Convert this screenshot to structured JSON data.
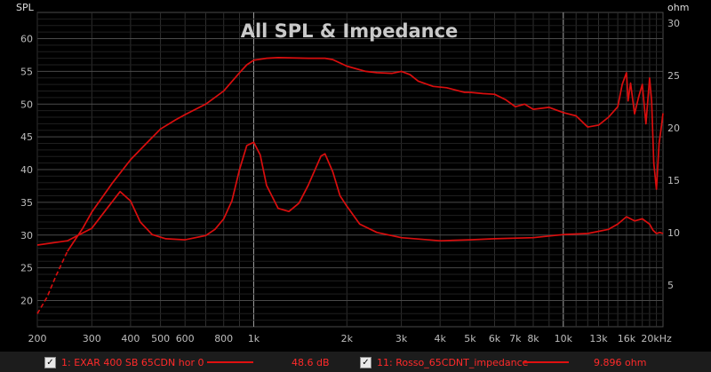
{
  "window": {
    "title": "All SPL & Impedance"
  },
  "colors": {
    "background": "#000000",
    "grid": "#3a3a3a",
    "curve": "#d90e0e",
    "legend_bg": "#1c1c1c",
    "legend_text": "#ff2a2a"
  },
  "legend": [
    {
      "checked": true,
      "name": "1: EXAR 400 SB 65CDN hor 0",
      "value": "48.6 dB"
    },
    {
      "checked": true,
      "name": "11: Rosso_65CDNT_impedance",
      "value": "9.896 ohm"
    }
  ],
  "chart_data": {
    "type": "line",
    "title": "All SPL & Impedance",
    "x_scale": "log",
    "xlim": [
      200,
      21000
    ],
    "xticks": [
      {
        "v": 200,
        "label": "200"
      },
      {
        "v": 300,
        "label": "300"
      },
      {
        "v": 400,
        "label": "400"
      },
      {
        "v": 500,
        "label": "500"
      },
      {
        "v": 600,
        "label": "600"
      },
      {
        "v": 800,
        "label": "800"
      },
      {
        "v": 1000,
        "label": "1k"
      },
      {
        "v": 2000,
        "label": "2k"
      },
      {
        "v": 3000,
        "label": "3k"
      },
      {
        "v": 4000,
        "label": "4k"
      },
      {
        "v": 5000,
        "label": "5k"
      },
      {
        "v": 6000,
        "label": "6k"
      },
      {
        "v": 7000,
        "label": "7k"
      },
      {
        "v": 8000,
        "label": "8k"
      },
      {
        "v": 10000,
        "label": "10k"
      },
      {
        "v": 13000,
        "label": "13k"
      },
      {
        "v": 16000,
        "label": "16k"
      },
      {
        "v": 20000,
        "label": "20kHz"
      }
    ],
    "y_left": {
      "unit_label": "SPL",
      "lim": [
        16,
        64
      ],
      "ticks": [
        20,
        25,
        30,
        35,
        40,
        45,
        50,
        55,
        60
      ]
    },
    "y_right": {
      "unit_label": "ohm",
      "lim": [
        1,
        31
      ],
      "ticks": [
        5,
        10,
        15,
        20,
        25,
        30
      ]
    },
    "grid": true,
    "series": [
      {
        "name": "1: EXAR 400 SB 65CDN hor 0",
        "axis": "left",
        "extrapolated_points": [
          [
            200,
            18
          ],
          [
            215,
            20.5
          ],
          [
            230,
            23.8
          ],
          [
            250,
            27.5
          ]
        ],
        "points": [
          [
            250,
            27.5
          ],
          [
            280,
            31
          ],
          [
            300,
            33.5
          ],
          [
            350,
            38
          ],
          [
            400,
            41.5
          ],
          [
            450,
            44
          ],
          [
            500,
            46.2
          ],
          [
            560,
            47.6
          ],
          [
            600,
            48.4
          ],
          [
            700,
            50
          ],
          [
            800,
            52
          ],
          [
            900,
            54.8
          ],
          [
            950,
            56
          ],
          [
            1000,
            56.7
          ],
          [
            1100,
            57
          ],
          [
            1200,
            57.1
          ],
          [
            1500,
            57
          ],
          [
            1700,
            57
          ],
          [
            1800,
            56.8
          ],
          [
            2000,
            55.8
          ],
          [
            2300,
            55
          ],
          [
            2500,
            54.8
          ],
          [
            2800,
            54.7
          ],
          [
            3000,
            55
          ],
          [
            3200,
            54.5
          ],
          [
            3400,
            53.5
          ],
          [
            3800,
            52.7
          ],
          [
            4200,
            52.5
          ],
          [
            4800,
            51.8
          ],
          [
            5000,
            51.8
          ],
          [
            5500,
            51.6
          ],
          [
            6000,
            51.5
          ],
          [
            6500,
            50.7
          ],
          [
            7000,
            49.6
          ],
          [
            7500,
            50
          ],
          [
            8000,
            49.2
          ],
          [
            9000,
            49.5
          ],
          [
            10000,
            48.7
          ],
          [
            11000,
            48.2
          ],
          [
            12000,
            46.5
          ],
          [
            13000,
            46.8
          ],
          [
            14000,
            48
          ],
          [
            15000,
            49.6
          ],
          [
            15500,
            53
          ],
          [
            16000,
            54.8
          ],
          [
            16200,
            50.5
          ],
          [
            16500,
            53.2
          ],
          [
            17000,
            48.5
          ],
          [
            17500,
            51
          ],
          [
            18000,
            53
          ],
          [
            18500,
            47
          ],
          [
            19000,
            54
          ],
          [
            19300,
            50.5
          ],
          [
            19600,
            41
          ],
          [
            20000,
            37
          ],
          [
            20400,
            44
          ],
          [
            20800,
            47
          ],
          [
            21000,
            48.6
          ]
        ]
      },
      {
        "name": "11: Rosso_65CDNT_impedance",
        "axis": "right",
        "points": [
          [
            200,
            8.8
          ],
          [
            250,
            9.2
          ],
          [
            300,
            10.4
          ],
          [
            340,
            12.5
          ],
          [
            370,
            13.9
          ],
          [
            400,
            13
          ],
          [
            430,
            11
          ],
          [
            470,
            9.8
          ],
          [
            520,
            9.4
          ],
          [
            600,
            9.3
          ],
          [
            700,
            9.7
          ],
          [
            750,
            10.3
          ],
          [
            800,
            11.3
          ],
          [
            850,
            13
          ],
          [
            900,
            16
          ],
          [
            950,
            18.3
          ],
          [
            1000,
            18.6
          ],
          [
            1050,
            17.4
          ],
          [
            1100,
            14.5
          ],
          [
            1200,
            12.3
          ],
          [
            1300,
            12
          ],
          [
            1400,
            12.8
          ],
          [
            1500,
            14.5
          ],
          [
            1650,
            17.3
          ],
          [
            1700,
            17.5
          ],
          [
            1800,
            15.8
          ],
          [
            1900,
            13.5
          ],
          [
            2000,
            12.5
          ],
          [
            2200,
            10.8
          ],
          [
            2500,
            10
          ],
          [
            3000,
            9.5
          ],
          [
            4000,
            9.2
          ],
          [
            5000,
            9.3
          ],
          [
            6000,
            9.4
          ],
          [
            8000,
            9.5
          ],
          [
            10000,
            9.8
          ],
          [
            12000,
            9.9
          ],
          [
            14000,
            10.3
          ],
          [
            15000,
            10.8
          ],
          [
            16000,
            11.5
          ],
          [
            17000,
            11.1
          ],
          [
            18000,
            11.3
          ],
          [
            19000,
            10.8
          ],
          [
            19500,
            10.2
          ],
          [
            20000,
            9.9
          ],
          [
            20500,
            10
          ],
          [
            21000,
            9.9
          ]
        ]
      }
    ]
  }
}
